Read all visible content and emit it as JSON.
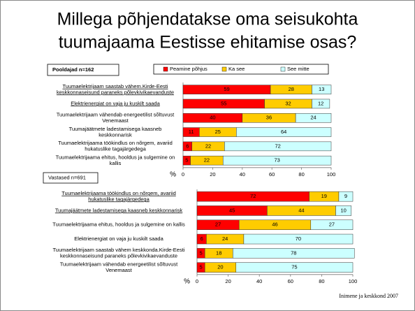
{
  "title": [
    "Millega põhjendatakse oma seisukohta",
    "tuumajaama Eestisse ehitamise osas?"
  ],
  "footer": "Inimene ja keskkond 2007",
  "chart_data": [
    {
      "type": "stacked-bar-horizontal",
      "subtitle": "Pooldajad n=162",
      "xlabel": "%",
      "categories": [
        [
          "Tuumaelektrijaam saastab vähem.Kirde-Eesti",
          "keskkonnaseisund paraneks põlevkivikaevanduste"
        ],
        [
          "Elektrienergiat on vaja ju kuskilt saada"
        ],
        [
          "Tuumaelektrijaam vähendab energeetilist sõltuvust",
          "Venemaast"
        ],
        [
          "Tuumajäätmete ladestamisega kaasneb",
          "keskkonnarisk"
        ],
        [
          "Tuumaelektrijaama töökindlus on nõrgem, avariid",
          "hukatuslike tagajärgedega"
        ],
        [
          "Tuumaelektrijaama ehitus, hooldus ja sulgemine on",
          "kallis"
        ]
      ],
      "underlined": [
        true,
        true,
        false,
        false,
        false,
        false
      ],
      "series": [
        {
          "name": "Peamine põhjus",
          "color": "#ff0000",
          "values": [
            59,
            55,
            40,
            11,
            6,
            5
          ]
        },
        {
          "name": "Ka see",
          "color": "#ffcc00",
          "values": [
            28,
            32,
            36,
            25,
            22,
            22
          ]
        },
        {
          "name": "See mitte",
          "color": "#ccffff",
          "values": [
            13,
            12,
            24,
            64,
            72,
            73
          ]
        }
      ],
      "xlim": [
        0,
        100
      ],
      "xticks": [
        0,
        20,
        40,
        60,
        80,
        100
      ],
      "legend": "top"
    },
    {
      "type": "stacked-bar-horizontal",
      "subtitle": "Vastased n=691",
      "xlabel": "%",
      "categories": [
        [
          "Tuumaelektrijaama töökindlus on nõrgem, avariid",
          "hukatuslike tagajärgedega"
        ],
        [
          "Tuumajäätmete ladestamisega kaasneb keskkonnarisk"
        ],
        [
          "Tuumaelektrijaama ehitus, hooldus ja sulgemine on kallis"
        ],
        [
          "Elektrienergiat on vaja ju kuskilt saada"
        ],
        [
          "Tuumaelektrijaam saastab vähem keskkonda.Kirde-Eesti",
          "keskkonnaseisund paraneks põlevkivikaevanduste"
        ],
        [
          "Tuumaelektrijaam vähendab energeetilist sõltuvust",
          "Venemaast"
        ]
      ],
      "underlined": [
        true,
        true,
        false,
        false,
        false,
        false
      ],
      "series": [
        {
          "color": "#ff0000",
          "values": [
            72,
            45,
            27,
            6,
            5,
            5
          ]
        },
        {
          "color": "#ffcc00",
          "values": [
            19,
            44,
            46,
            24,
            18,
            20
          ]
        },
        {
          "color": "#ccffff",
          "values": [
            9,
            10,
            27,
            70,
            78,
            75
          ]
        }
      ],
      "xlim": [
        0,
        100
      ],
      "xticks": [
        0,
        20,
        40,
        60,
        80,
        100
      ]
    }
  ]
}
